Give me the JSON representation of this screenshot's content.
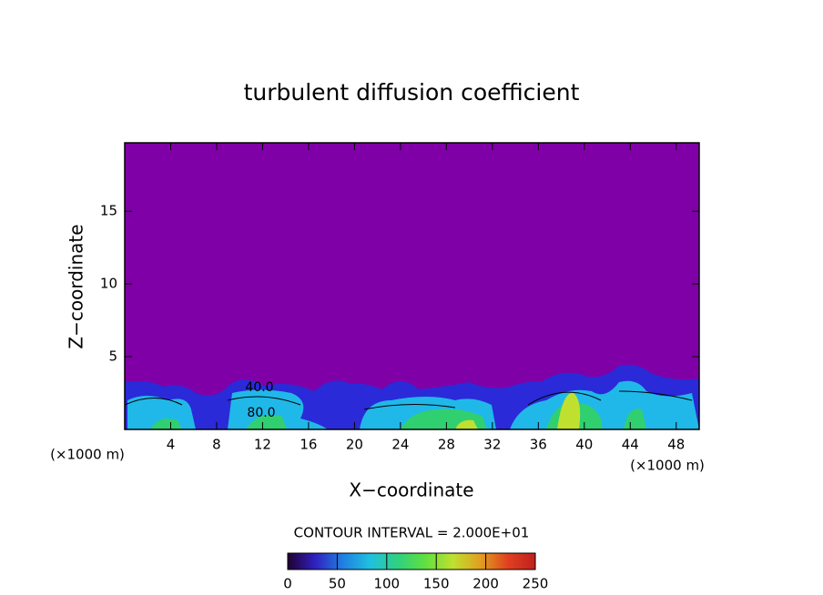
{
  "chart_data": {
    "type": "contour",
    "title": "turbulent diffusion coefficient",
    "x_label": "X−coordinate",
    "y_label": "Z−coordinate",
    "x_unit_labels": [
      "(×1000 m)",
      "(×1000 m)"
    ],
    "xlim": [
      0,
      50
    ],
    "xticks": [
      4,
      8,
      12,
      16,
      20,
      24,
      28,
      32,
      36,
      40,
      44,
      48
    ],
    "ylim": [
      0,
      19.7
    ],
    "yticks": [
      5,
      10,
      15
    ],
    "background_color": "#8000a8",
    "contour_labels": [
      "40.0",
      "80.0"
    ],
    "contour_interval_text": "CONTOUR INTERVAL = 2.000E+01",
    "colorbar": {
      "lim": [
        0,
        250
      ],
      "ticks": [
        0,
        50,
        100,
        150,
        200,
        250
      ],
      "colors": [
        "#200030",
        "#3020c0",
        "#2080e0",
        "#20c0e0",
        "#30d080",
        "#60e040",
        "#c0e030",
        "#e0a020",
        "#e04020",
        "#c02020"
      ]
    }
  }
}
